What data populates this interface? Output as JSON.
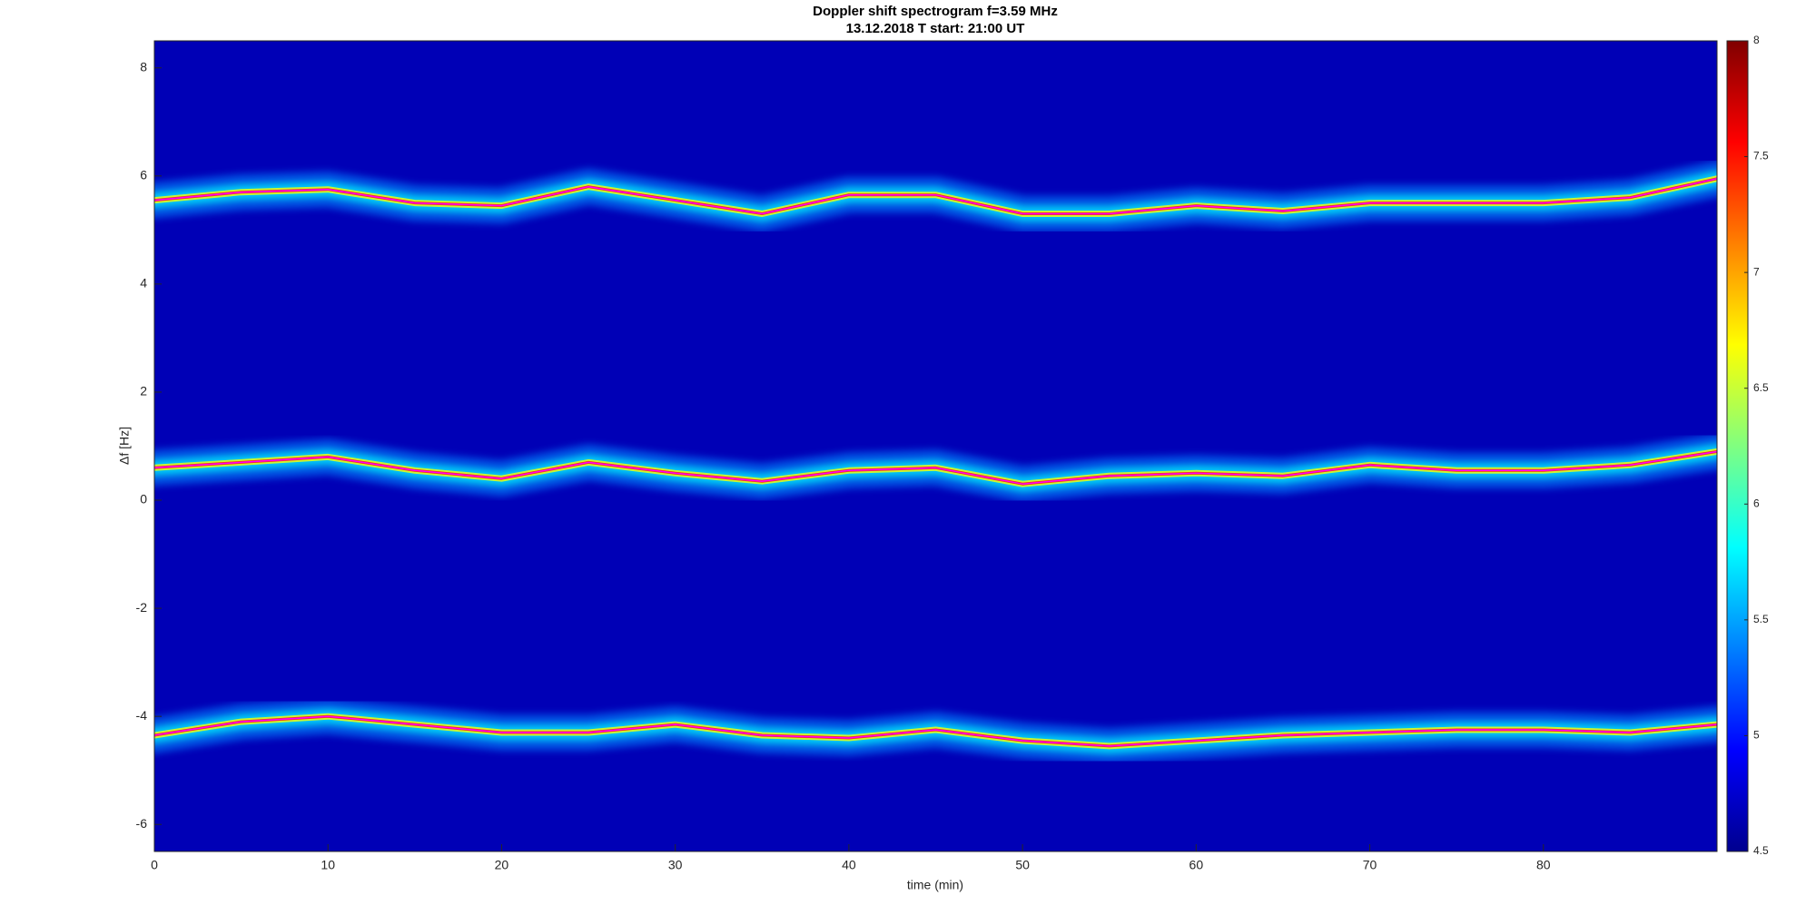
{
  "chart_data": {
    "type": "spectrogram",
    "title": "Doppler shift spectrogram f=3.59 MHz",
    "subtitle": "13.12.2018   T start: 21:00 UT",
    "xlabel": "time (min)",
    "ylabel": "Δf [Hz]",
    "x": [
      0,
      5,
      10,
      15,
      20,
      25,
      30,
      35,
      40,
      45,
      50,
      55,
      60,
      65,
      70,
      75,
      80,
      85,
      90
    ],
    "series": [
      {
        "color": "#ff00ff",
        "values": [
          5.55,
          5.7,
          5.75,
          5.5,
          5.45,
          5.8,
          5.55,
          5.3,
          5.65,
          5.65,
          5.3,
          5.3,
          5.45,
          5.35,
          5.5,
          5.5,
          5.5,
          5.6,
          5.95
        ]
      },
      {
        "color": "#ff00ff",
        "values": [
          0.6,
          0.7,
          0.8,
          0.55,
          0.4,
          0.7,
          0.5,
          0.35,
          0.55,
          0.6,
          0.3,
          0.45,
          0.5,
          0.45,
          0.65,
          0.55,
          0.55,
          0.65,
          0.9
        ]
      },
      {
        "color": "#ff00ff",
        "values": [
          -4.35,
          -4.1,
          -4.0,
          -4.15,
          -4.3,
          -4.3,
          -4.15,
          -4.35,
          -4.4,
          -4.25,
          -4.45,
          -4.55,
          -4.45,
          -4.35,
          -4.3,
          -4.25,
          -4.25,
          -4.3,
          -4.15
        ]
      }
    ],
    "xlim": [
      0,
      90
    ],
    "xticks": [
      0,
      10,
      20,
      30,
      40,
      50,
      60,
      70,
      80
    ],
    "ylim": [
      -6.5,
      8.5
    ],
    "yticks": [
      -6,
      -4,
      -2,
      0,
      2,
      4,
      6,
      8
    ],
    "clim": [
      4.5,
      8
    ],
    "cticks": [
      4.5,
      5,
      5.5,
      6,
      6.5,
      7,
      7.5,
      8
    ],
    "colormap": [
      "#00008f",
      "#0000ff",
      "#0080ff",
      "#00ffff",
      "#80ff80",
      "#ffff00",
      "#ff8000",
      "#ff0000",
      "#800000"
    ]
  }
}
